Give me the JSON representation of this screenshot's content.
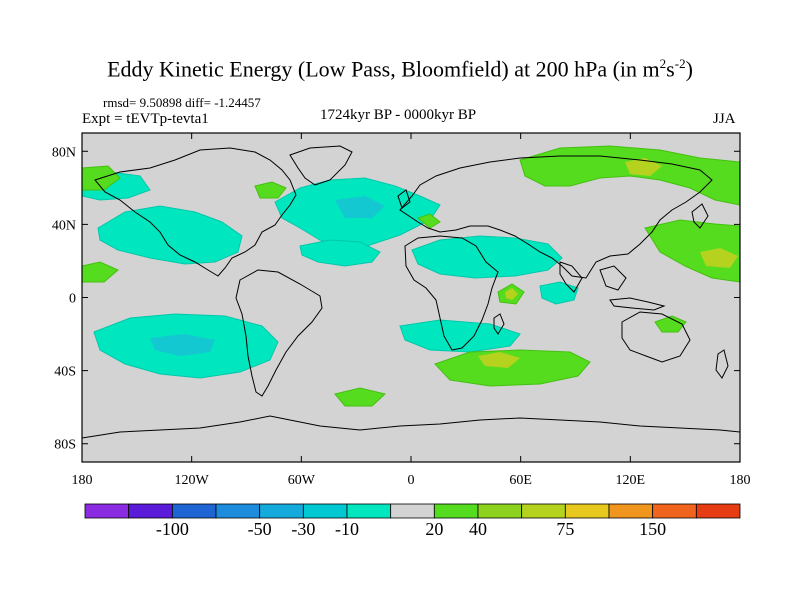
{
  "title": {
    "main": "Eddy Kinetic Energy (Low Pass, Bloomfield) at 200 hPa (in m",
    "sup1": "2",
    "mid": "s",
    "sup2": "-2",
    "end": ")"
  },
  "stats": "rmsd= 9.50898 diff= -1.24457",
  "expt": "Expt = tEVTp-tevta1",
  "period": "1724kyr BP - 0000kyr BP",
  "season": "JJA",
  "map": {
    "lat_ticks": [
      "80N",
      "40N",
      "0",
      "40S",
      "80S"
    ],
    "lon_ticks": [
      "180",
      "120W",
      "60W",
      "0",
      "60E",
      "120E",
      "180"
    ],
    "background_color": "#d3d3d3",
    "coastline_color": "#000000"
  },
  "colorbar": {
    "colors": [
      "#8a2be2",
      "#5a1cd8",
      "#1e64d2",
      "#1e8cdc",
      "#14aadc",
      "#00c8d2",
      "#00e6be",
      "#d3d3d3",
      "#55dc1e",
      "#8cd21e",
      "#b4d21e",
      "#e6c81e",
      "#f0961e",
      "#f0641e",
      "#e63c14"
    ],
    "labels": [
      "-100",
      "-50",
      "-30",
      "-10",
      "20",
      "40",
      "75",
      "150"
    ]
  }
}
